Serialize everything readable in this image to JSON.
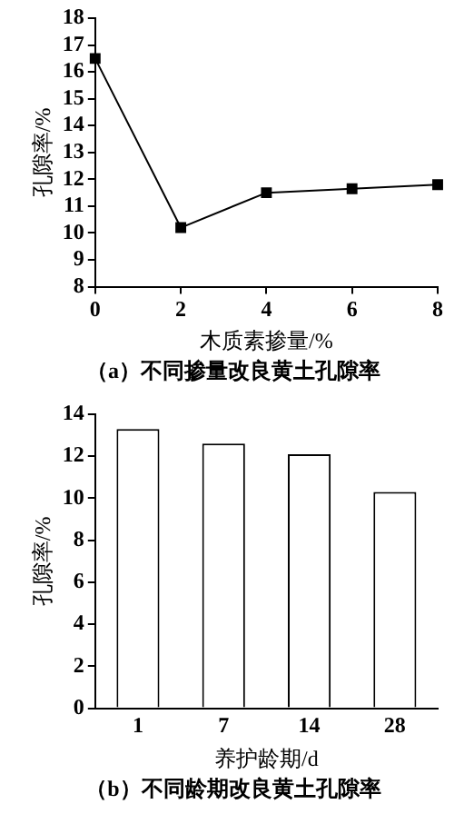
{
  "chart_data": [
    {
      "type": "line",
      "xlabel": "木质素掺量/%",
      "ylabel": "孔隙率/%",
      "annotations": [
        "（a）不同掺量改良黄土孔隙率"
      ],
      "x": [
        0,
        2,
        4,
        6,
        8
      ],
      "series": [
        {
          "color": "#000000",
          "values": [
            16.5,
            10.2,
            11.5,
            11.65,
            11.8
          ]
        }
      ],
      "xlim": [
        0,
        8
      ],
      "xticks": [
        0,
        2,
        4,
        6,
        8
      ],
      "ylim": [
        8,
        18
      ],
      "yticks": [
        8,
        9,
        10,
        11,
        12,
        13,
        14,
        15,
        16,
        17,
        18
      ],
      "marker": "square",
      "line_style": "solid",
      "grid": false,
      "legend": false
    },
    {
      "type": "bar",
      "xlabel": "养护龄期/d",
      "ylabel": "孔隙率/%",
      "annotations": [
        "（b）不同龄期改良黄土孔隙率"
      ],
      "categories": [
        "1",
        "7",
        "14",
        "28"
      ],
      "series": [
        {
          "color": "#ffffff",
          "values": [
            13.3,
            12.6,
            12.1,
            10.3
          ]
        }
      ],
      "ylim": [
        0,
        14
      ],
      "yticks": [
        0,
        2,
        4,
        6,
        8,
        10,
        12,
        14
      ],
      "grid": false,
      "legend": false
    }
  ]
}
